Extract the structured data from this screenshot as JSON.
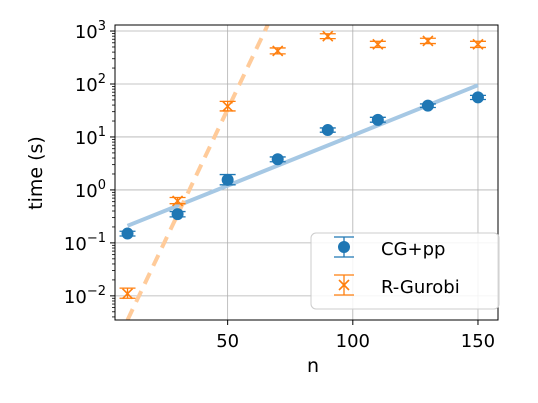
{
  "chart_data": {
    "type": "scatter",
    "xlabel": "n",
    "ylabel": "time (s)",
    "xlim": [
      5,
      158
    ],
    "ylim": [
      0.0035,
      1300
    ],
    "yscale": "log",
    "grid": true,
    "legend_placement": "bottom-right",
    "x_ticks": [
      50,
      100,
      150
    ],
    "x_tick_labels": [
      "50",
      "100",
      "150"
    ],
    "y_ticks": [
      0.01,
      0.1,
      1,
      10,
      100,
      1000
    ],
    "y_tick_bases": [
      "10",
      "10",
      "10",
      "10",
      "10",
      "10"
    ],
    "y_tick_exps": [
      "−2",
      "−1",
      "0",
      "1",
      "2",
      "3"
    ],
    "series": [
      {
        "name": "CG+pp",
        "color": "#1f77b4",
        "marker": "circle",
        "x": [
          10,
          30,
          50,
          70,
          90,
          110,
          130,
          150
        ],
        "y": [
          0.15,
          0.35,
          1.55,
          3.8,
          13.5,
          21,
          39,
          56
        ],
        "err_low": [
          0.135,
          0.31,
          1.25,
          3.4,
          12.3,
          19,
          36,
          51
        ],
        "err_high": [
          0.166,
          0.39,
          1.95,
          4.2,
          14.8,
          23.5,
          42,
          61
        ],
        "fit": {
          "x": [
            10,
            150
          ],
          "y": [
            0.21,
            95
          ],
          "color": "#a6c8e4",
          "style": "solid"
        }
      },
      {
        "name": "R-Gurobi",
        "color": "#ff7f0e",
        "marker": "x",
        "x": [
          10,
          30,
          50,
          70,
          90,
          110,
          130,
          150
        ],
        "y": [
          0.011,
          0.62,
          38,
          420,
          800,
          560,
          650,
          560
        ],
        "err_low": [
          0.009,
          0.55,
          31,
          370,
          720,
          490,
          580,
          490
        ],
        "err_high": [
          0.014,
          0.72,
          47,
          480,
          890,
          640,
          730,
          640
        ],
        "fit": {
          "x": [
            10,
            66
          ],
          "y": [
            0.0035,
            1300
          ],
          "color": "#ffcb9a",
          "style": "dashed"
        }
      }
    ]
  }
}
